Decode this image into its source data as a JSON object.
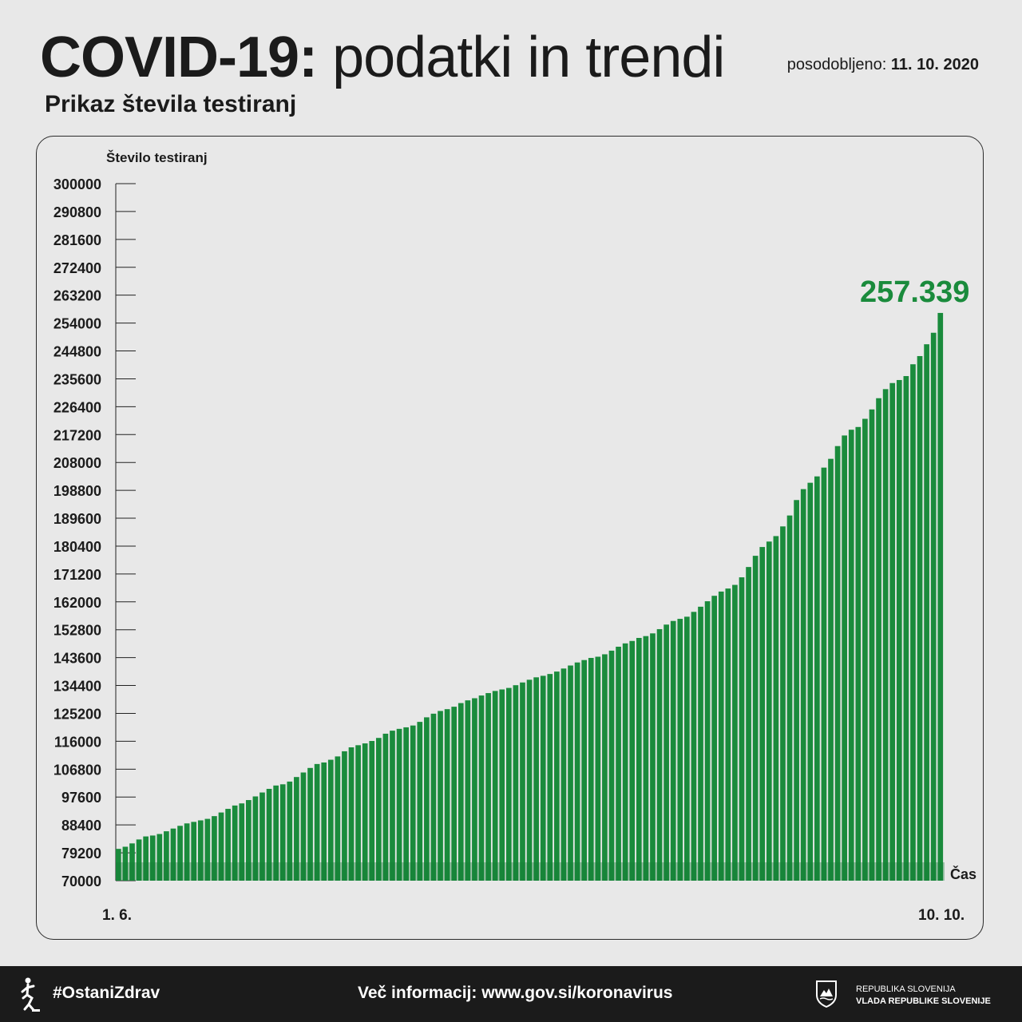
{
  "header": {
    "title_bold": "COVID-19:",
    "title_light": "podatki in trendi",
    "updated_label": "posodobljeno:",
    "updated_date": "11. 10. 2020",
    "subtitle": "Prikaz števila testiranj"
  },
  "chart_data": {
    "type": "bar",
    "ylabel": "Število testiranj",
    "xlabel": "Čas",
    "ylim": [
      70000,
      300000
    ],
    "yticks": [
      300000,
      290800,
      281600,
      272400,
      263200,
      254000,
      244800,
      235600,
      226400,
      217200,
      208000,
      198800,
      189600,
      180400,
      171200,
      162000,
      152800,
      143600,
      134400,
      125200,
      116000,
      106800,
      97600,
      88400,
      79200,
      70000
    ],
    "x_start_label": "1. 6.",
    "x_end_label": "10. 10.",
    "last_value_label": "257.339",
    "grid": false,
    "bar_color": "#1a8b3c",
    "values": [
      80500,
      81200,
      82300,
      83600,
      84600,
      84900,
      85400,
      86300,
      87200,
      88100,
      88900,
      89400,
      89900,
      90400,
      91300,
      92500,
      93700,
      94800,
      95500,
      96600,
      97800,
      99100,
      100300,
      101400,
      101800,
      102700,
      104200,
      105700,
      107200,
      108500,
      109000,
      109900,
      111000,
      112700,
      114000,
      114700,
      115300,
      116100,
      117100,
      118500,
      119500,
      120100,
      120600,
      121200,
      122400,
      123900,
      125100,
      126000,
      126600,
      127400,
      128600,
      129500,
      130200,
      131100,
      131900,
      132600,
      133100,
      133600,
      134500,
      135400,
      136300,
      137100,
      137600,
      138200,
      139000,
      140000,
      141000,
      142000,
      142800,
      143500,
      143900,
      144700,
      145900,
      147200,
      148300,
      149100,
      150100,
      150700,
      151600,
      153000,
      154500,
      155700,
      156400,
      157100,
      158700,
      160400,
      162200,
      164000,
      165400,
      166400,
      167600,
      170100,
      173500,
      177200,
      180100,
      181900,
      183700,
      186900,
      190500,
      195600,
      199200,
      201300,
      203400,
      206300,
      209200,
      213400,
      216900,
      218800,
      219700,
      222400,
      225500,
      229200,
      232200,
      234200,
      235200,
      236500,
      240400,
      243100,
      247000,
      250800,
      257339
    ]
  },
  "footer": {
    "hashtag": "#OstaniZdrav",
    "info_label": "Več informacij:",
    "info_url": "www.gov.si/koronavirus",
    "gov_line1": "REPUBLIKA SLOVENIJA",
    "gov_line2": "VLADA REPUBLIKE SLOVENIJE"
  },
  "colors": {
    "accent": "#1a8b3c",
    "footer_bg": "#1b1b1b",
    "background": "#e8e8e8"
  },
  "icons": {
    "hashtag_icon": "person-dancing-icon",
    "crest_icon": "slovenian-coat-of-arms-icon"
  }
}
